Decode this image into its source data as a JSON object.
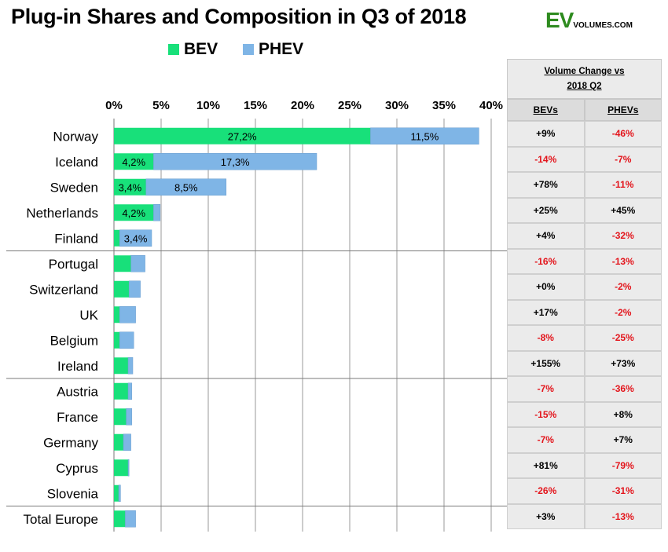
{
  "title": "Plug-in Shares and Composition in Q3 of 2018",
  "logo": {
    "main": "EV",
    "sub": "VOLUMES.COM"
  },
  "colors": {
    "bev": "#18e07a",
    "phev": "#7fb5e6",
    "negative": "#e3141b",
    "positive": "#000000",
    "logo_green": "#2e8b1f"
  },
  "legend": {
    "bev_label": "BEV",
    "phev_label": "PHEV"
  },
  "chart_data": {
    "type": "bar",
    "orientation": "horizontal",
    "stacked": true,
    "title": "Plug-in Shares and Composition in Q3 of 2018",
    "xlim": [
      0,
      40
    ],
    "tick_labels": [
      "0%",
      "5%",
      "10%",
      "15%",
      "20%",
      "25%",
      "30%",
      "35%",
      "40%"
    ],
    "grid": true,
    "legend_position": "top",
    "categories": [
      "Norway",
      "Iceland",
      "Sweden",
      "Netherlands",
      "Finland",
      "Portugal",
      "Switzerland",
      "UK",
      "Belgium",
      "Ireland",
      "Austria",
      "France",
      "Germany",
      "Cyprus",
      "Slovenia",
      "Total Europe"
    ],
    "series": [
      {
        "name": "BEV",
        "values": [
          27.2,
          4.2,
          3.4,
          4.2,
          0.6,
          1.8,
          1.6,
          0.6,
          0.6,
          1.5,
          1.5,
          1.3,
          1.0,
          1.5,
          0.5,
          1.2
        ]
      },
      {
        "name": "PHEV",
        "values": [
          11.5,
          17.3,
          8.5,
          0.7,
          3.4,
          1.5,
          1.2,
          1.7,
          1.5,
          0.5,
          0.4,
          0.6,
          0.8,
          0.1,
          0.2,
          1.1
        ]
      }
    ],
    "data_labels": {
      "BEV": [
        "27,2%",
        "4,2%",
        "3,4%",
        "4,2%",
        "",
        "",
        "",
        "",
        "",
        "",
        "",
        "",
        "",
        "",
        "",
        ""
      ],
      "PHEV": [
        "11,5%",
        "17,3%",
        "8,5%",
        "",
        "3,4%",
        "",
        "",
        "",
        "",
        "",
        "",
        "",
        "",
        "",
        "",
        ""
      ]
    },
    "group_separators_after": [
      "Finland",
      "Ireland",
      "Slovenia"
    ]
  },
  "table": {
    "header": "Volume Change vs 2018 Q2",
    "columns": [
      "BEVs",
      "PHEVs"
    ],
    "rows": [
      [
        "+9%",
        "-46%"
      ],
      [
        "-14%",
        "-7%"
      ],
      [
        "+78%",
        "-11%"
      ],
      [
        "+25%",
        "+45%"
      ],
      [
        "+4%",
        "-32%"
      ],
      [
        "-16%",
        "-13%"
      ],
      [
        "+0%",
        "-2%"
      ],
      [
        "+17%",
        "-2%"
      ],
      [
        "-8%",
        "-25%"
      ],
      [
        "+155%",
        "+73%"
      ],
      [
        "-7%",
        "-36%"
      ],
      [
        "-15%",
        "+8%"
      ],
      [
        "-7%",
        "+7%"
      ],
      [
        "+81%",
        "-79%"
      ],
      [
        "-26%",
        "-31%"
      ],
      [
        "+3%",
        "-13%"
      ]
    ]
  }
}
